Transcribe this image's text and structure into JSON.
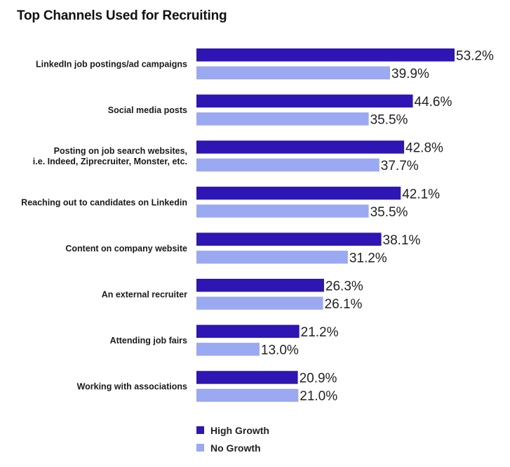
{
  "chart_data": {
    "type": "bar",
    "orientation": "horizontal",
    "title": "Top Channels Used for Recruiting",
    "categories": [
      "LinkedIn job postings/ad campaigns",
      "Social media posts",
      "Posting on job search websites,\ni.e. Indeed, Ziprecruiter, Monster, etc.",
      "Reaching out to candidates on Linkedin",
      "Content on company website",
      "An external recruiter",
      "Attending job fairs",
      "Working with associations"
    ],
    "series": [
      {
        "name": "High Growth",
        "color": "#2d16b3",
        "values": [
          53.2,
          44.6,
          42.8,
          42.1,
          38.1,
          26.3,
          21.2,
          20.9
        ]
      },
      {
        "name": "No Growth",
        "color": "#9aa9f2",
        "values": [
          39.9,
          35.5,
          37.7,
          35.5,
          31.2,
          26.1,
          13.0,
          21.0
        ]
      }
    ],
    "value_suffix": "%",
    "xlim": [
      0,
      53.2
    ],
    "grid": false,
    "legend_position": "bottom-left"
  }
}
